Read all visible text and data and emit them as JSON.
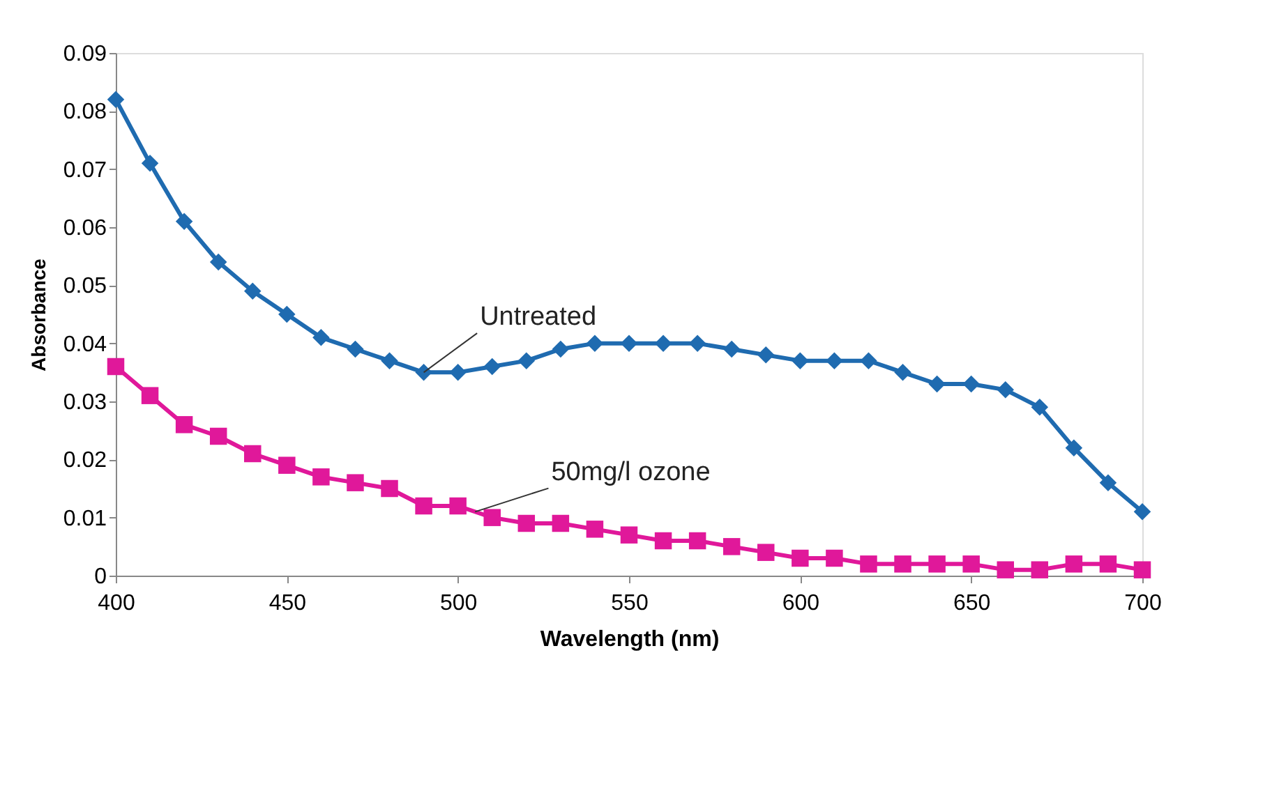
{
  "chart_data": {
    "type": "line",
    "xlabel": "Wavelength (nm)",
    "ylabel": "Absorbance",
    "x": [
      400,
      410,
      420,
      430,
      440,
      450,
      460,
      470,
      480,
      490,
      500,
      510,
      520,
      530,
      540,
      550,
      560,
      570,
      580,
      590,
      600,
      610,
      620,
      630,
      640,
      650,
      660,
      670,
      680,
      690,
      700
    ],
    "series": [
      {
        "color": "#1f6bb0",
        "marker": "diamond",
        "values": [
          0.082,
          0.071,
          0.061,
          0.054,
          0.049,
          0.045,
          0.041,
          0.039,
          0.037,
          0.035,
          0.035,
          0.036,
          0.037,
          0.039,
          0.04,
          0.04,
          0.04,
          0.04,
          0.039,
          0.038,
          0.037,
          0.037,
          0.037,
          0.035,
          0.033,
          0.033,
          0.032,
          0.029,
          0.022,
          0.016,
          0.011
        ]
      },
      {
        "color": "#e0189a",
        "marker": "square",
        "values": [
          0.036,
          0.031,
          0.026,
          0.024,
          0.021,
          0.019,
          0.017,
          0.016,
          0.015,
          0.012,
          0.012,
          0.01,
          0.009,
          0.009,
          0.008,
          0.007,
          0.006,
          0.006,
          0.005,
          0.004,
          0.003,
          0.003,
          0.002,
          0.002,
          0.002,
          0.002,
          0.001,
          0.001,
          0.002,
          0.002,
          0.001
        ]
      }
    ],
    "annotations": [
      {
        "text": "Untreated",
        "x": 490,
        "y": 0.035
      },
      {
        "text": "50mg/l ozone",
        "x": 505,
        "y": 0.011
      }
    ],
    "xlim": [
      400,
      700
    ],
    "xticks": [
      400,
      450,
      500,
      550,
      600,
      650,
      700
    ],
    "ylim": [
      0,
      0.09
    ],
    "yticks": [
      0,
      0.01,
      0.02,
      0.03,
      0.04,
      0.05,
      0.06,
      0.07,
      0.08,
      0.09
    ],
    "grid": false,
    "line_style": "solid"
  }
}
